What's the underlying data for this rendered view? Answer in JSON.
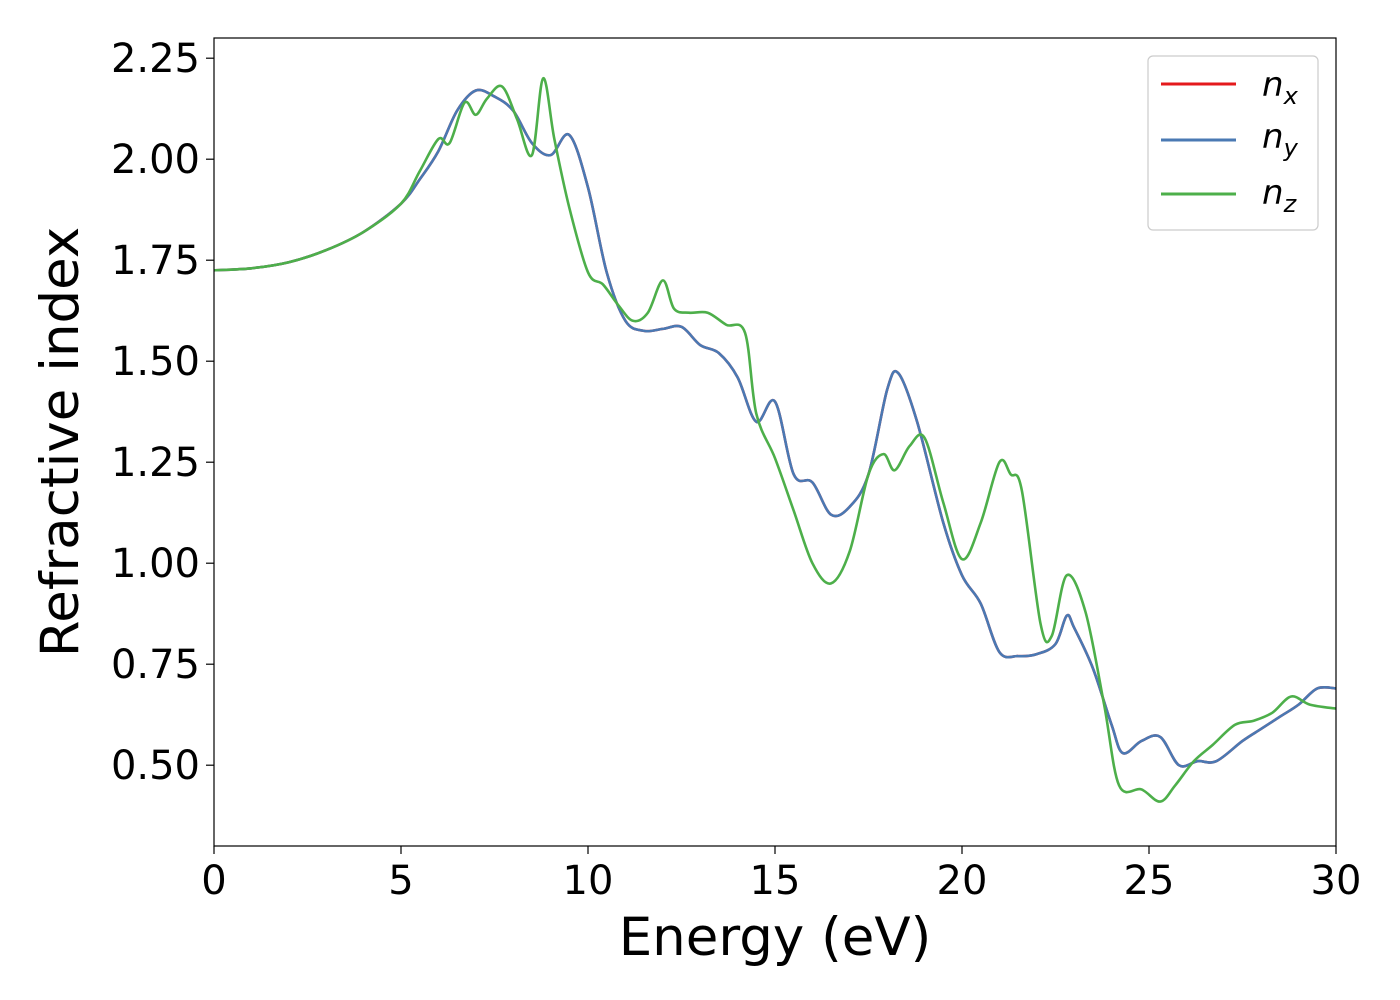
{
  "chart_data": {
    "type": "line",
    "xlabel": "Energy (eV)",
    "ylabel": "Refractive index",
    "xlim": [
      0,
      30
    ],
    "ylim": [
      0.3,
      2.3
    ],
    "xticks": [
      0,
      5,
      10,
      15,
      20,
      25,
      30
    ],
    "xtick_labels": [
      "0",
      "5",
      "10",
      "15",
      "20",
      "25",
      "30"
    ],
    "yticks": [
      0.5,
      0.75,
      1.0,
      1.25,
      1.5,
      1.75,
      2.0,
      2.25
    ],
    "ytick_labels": [
      "0.50",
      "0.75",
      "1.00",
      "1.25",
      "1.50",
      "1.75",
      "2.00",
      "2.25"
    ],
    "grid": false,
    "legend_position": "top-right",
    "series": [
      {
        "name": "n_x",
        "label_main": "n",
        "label_sub": "x",
        "color": "#e41a1c",
        "x": [
          0,
          1,
          2,
          3,
          4,
          5,
          5.5,
          6,
          6.5,
          7,
          7.5,
          8,
          8.5,
          9,
          9.5,
          10,
          10.5,
          11,
          11.5,
          12,
          12.5,
          13,
          13.5,
          14,
          14.5,
          15,
          15.5,
          16,
          16.5,
          17,
          17.5,
          18,
          18.3,
          18.8,
          19.5,
          20,
          20.5,
          21,
          21.5,
          22,
          22.5,
          22.8,
          23,
          23.5,
          24,
          24.3,
          24.8,
          25.3,
          25.8,
          26.3,
          26.8,
          27.5,
          28,
          28.5,
          29,
          29.5,
          30
        ],
        "y": [
          1.725,
          1.73,
          1.745,
          1.775,
          1.82,
          1.89,
          1.95,
          2.02,
          2.12,
          2.17,
          2.155,
          2.12,
          2.04,
          2.01,
          2.06,
          1.93,
          1.72,
          1.6,
          1.575,
          1.58,
          1.585,
          1.54,
          1.52,
          1.46,
          1.35,
          1.4,
          1.22,
          1.2,
          1.12,
          1.14,
          1.22,
          1.43,
          1.47,
          1.35,
          1.1,
          0.97,
          0.9,
          0.78,
          0.77,
          0.775,
          0.8,
          0.87,
          0.84,
          0.74,
          0.6,
          0.53,
          0.56,
          0.57,
          0.5,
          0.51,
          0.51,
          0.56,
          0.59,
          0.62,
          0.65,
          0.69,
          0.69
        ]
      },
      {
        "name": "n_y",
        "label_main": "n",
        "label_sub": "y",
        "color": "#4a79b3",
        "x": [
          0,
          1,
          2,
          3,
          4,
          5,
          5.5,
          6,
          6.5,
          7,
          7.5,
          8,
          8.5,
          9,
          9.5,
          10,
          10.5,
          11,
          11.5,
          12,
          12.5,
          13,
          13.5,
          14,
          14.5,
          15,
          15.5,
          16,
          16.5,
          17,
          17.5,
          18,
          18.3,
          18.8,
          19.5,
          20,
          20.5,
          21,
          21.5,
          22,
          22.5,
          22.8,
          23,
          23.5,
          24,
          24.3,
          24.8,
          25.3,
          25.8,
          26.3,
          26.8,
          27.5,
          28,
          28.5,
          29,
          29.5,
          30
        ],
        "y": [
          1.725,
          1.73,
          1.745,
          1.775,
          1.82,
          1.89,
          1.95,
          2.02,
          2.12,
          2.17,
          2.155,
          2.12,
          2.04,
          2.01,
          2.06,
          1.93,
          1.72,
          1.6,
          1.575,
          1.58,
          1.585,
          1.54,
          1.52,
          1.46,
          1.35,
          1.4,
          1.22,
          1.2,
          1.12,
          1.14,
          1.22,
          1.43,
          1.47,
          1.35,
          1.1,
          0.97,
          0.9,
          0.78,
          0.77,
          0.775,
          0.8,
          0.87,
          0.84,
          0.74,
          0.6,
          0.53,
          0.56,
          0.57,
          0.5,
          0.51,
          0.51,
          0.56,
          0.59,
          0.62,
          0.65,
          0.69,
          0.69
        ]
      },
      {
        "name": "n_z",
        "label_main": "n",
        "label_sub": "z",
        "color": "#4daf4a",
        "x": [
          0,
          1,
          2,
          3,
          4,
          5,
          5.5,
          6,
          6.3,
          6.7,
          7,
          7.3,
          7.7,
          8.1,
          8.5,
          8.8,
          9.1,
          9.5,
          10,
          10.4,
          10.8,
          11.2,
          11.6,
          12,
          12.3,
          12.7,
          13.2,
          13.7,
          14.2,
          14.5,
          15,
          15.5,
          16,
          16.5,
          17,
          17.5,
          17.9,
          18.2,
          18.6,
          19,
          19.5,
          20,
          20.5,
          21,
          21.3,
          21.6,
          22.1,
          22.4,
          22.8,
          23.3,
          23.8,
          24.2,
          24.8,
          25.3,
          25.7,
          26.2,
          26.7,
          27.3,
          27.8,
          28.3,
          28.8,
          29.3,
          30
        ],
        "y": [
          1.725,
          1.73,
          1.745,
          1.775,
          1.82,
          1.89,
          1.97,
          2.05,
          2.04,
          2.14,
          2.11,
          2.15,
          2.18,
          2.1,
          2.01,
          2.2,
          2.05,
          1.88,
          1.72,
          1.69,
          1.64,
          1.6,
          1.62,
          1.7,
          1.63,
          1.62,
          1.62,
          1.59,
          1.57,
          1.37,
          1.26,
          1.13,
          1.0,
          0.95,
          1.03,
          1.22,
          1.27,
          1.23,
          1.29,
          1.31,
          1.15,
          1.01,
          1.1,
          1.25,
          1.22,
          1.18,
          0.85,
          0.82,
          0.97,
          0.88,
          0.65,
          0.45,
          0.44,
          0.41,
          0.45,
          0.51,
          0.55,
          0.6,
          0.61,
          0.63,
          0.67,
          0.65,
          0.64
        ]
      }
    ]
  }
}
